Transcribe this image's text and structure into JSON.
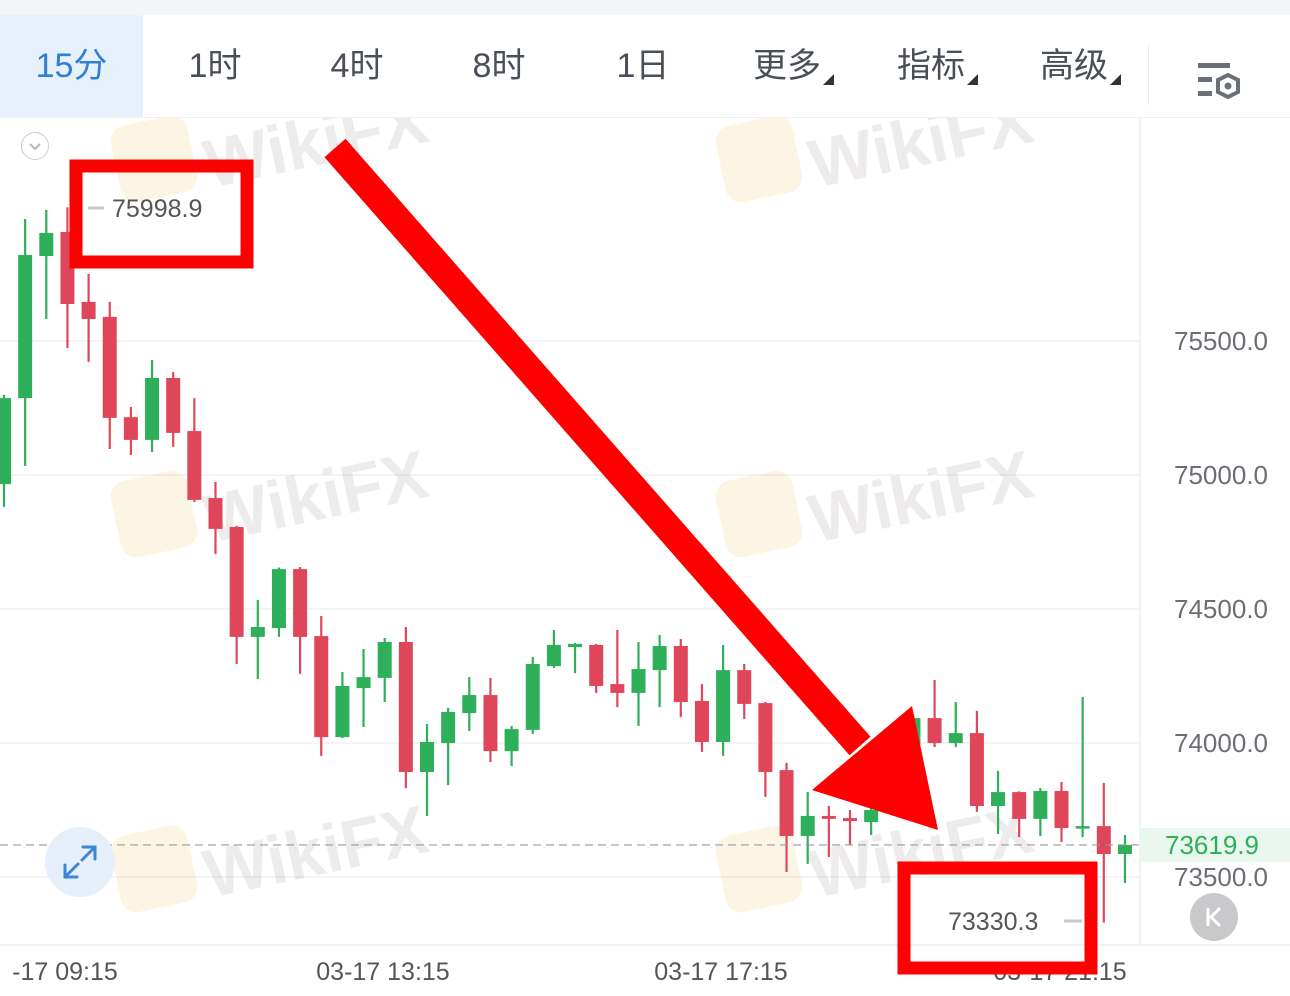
{
  "toolbar": {
    "tabs": [
      {
        "label": "15分",
        "active": true
      },
      {
        "label": "1时"
      },
      {
        "label": "4时"
      },
      {
        "label": "8时"
      },
      {
        "label": "1日"
      },
      {
        "label": "更多",
        "dropdown": true
      },
      {
        "label": "指标",
        "dropdown": true
      },
      {
        "label": "高级",
        "dropdown": true
      }
    ],
    "settings_icon": "chart-settings-icon"
  },
  "colors": {
    "up": "#2eaf5a",
    "down": "#e0465a",
    "accent": "#2f7fd3",
    "annotation": "#ff0000",
    "current_price_bg": "#eaf7ee"
  },
  "watermark": "WikiFX",
  "annotations": {
    "high_label": "75998.9",
    "low_label": "73330.3"
  },
  "chart_data": {
    "type": "candlestick",
    "title": "",
    "interval": "15分",
    "y_ticks": [
      "75500.0",
      "75000.0",
      "74500.0",
      "74000.0",
      "73500.0"
    ],
    "y_tick_values": [
      75500,
      75000,
      74500,
      74000,
      73500
    ],
    "x_ticks": [
      "-17 09:15",
      "03-17 13:15",
      "03-17 17:15",
      "03-17 21:15"
    ],
    "current_price": "73619.9",
    "grid": true,
    "candles_ohlc": [
      [
        74966,
        75299,
        74881,
        75287
      ],
      [
        75287,
        75955,
        75034,
        75821
      ],
      [
        75817,
        75989,
        75582,
        75903
      ],
      [
        75907,
        75998.9,
        75474,
        75638
      ],
      [
        75646,
        75750,
        75422,
        75582
      ],
      [
        75590,
        75646,
        75097,
        75213
      ],
      [
        75216,
        75254,
        75075,
        75131
      ],
      [
        75131,
        75429,
        75086,
        75362
      ],
      [
        75362,
        75384,
        75105,
        75157
      ],
      [
        75164,
        75287,
        74899,
        74907
      ],
      [
        74914,
        74974,
        74705,
        74799
      ],
      [
        74806,
        74810,
        74295,
        74396
      ],
      [
        74396,
        74534,
        74239,
        74433
      ],
      [
        74429,
        74655,
        74396,
        74649
      ],
      [
        74649,
        74657,
        74258,
        74396
      ],
      [
        74399,
        74474,
        73952,
        74022
      ],
      [
        74022,
        74265,
        74019,
        74213
      ],
      [
        74205,
        74351,
        74060,
        74246
      ],
      [
        74243,
        74392,
        74153,
        74377
      ],
      [
        74377,
        74433,
        73832,
        73892
      ],
      [
        73892,
        74071,
        73728,
        74004
      ],
      [
        74000,
        74131,
        73843,
        74116
      ],
      [
        74112,
        74246,
        74045,
        74179
      ],
      [
        74179,
        74243,
        73929,
        73970
      ],
      [
        73970,
        74064,
        73914,
        74052
      ],
      [
        74049,
        74321,
        74034,
        74295
      ],
      [
        74287,
        74422,
        74280,
        74366
      ],
      [
        74358,
        74373,
        74261,
        74370
      ],
      [
        74366,
        74370,
        74187,
        74213
      ],
      [
        74220,
        74422,
        74134,
        74187
      ],
      [
        74187,
        74377,
        74064,
        74276
      ],
      [
        74272,
        74403,
        74134,
        74362
      ],
      [
        74362,
        74388,
        74097,
        74153
      ],
      [
        74157,
        74220,
        73967,
        74004
      ],
      [
        74004,
        74366,
        73952,
        74272
      ],
      [
        74272,
        74295,
        74090,
        74146
      ],
      [
        74149,
        74153,
        73799,
        73892
      ],
      [
        73899,
        73926,
        73519,
        73653
      ],
      [
        73653,
        73817,
        73549,
        73728
      ],
      [
        73728,
        73765,
        73575,
        73717
      ],
      [
        73720,
        73750,
        73620,
        73709
      ],
      [
        73705,
        73761,
        73657,
        73750
      ],
      [
        73750,
        73993,
        73732,
        73974
      ],
      [
        73978,
        74101,
        73967,
        74093
      ],
      [
        74093,
        74235,
        73985,
        74000
      ],
      [
        74000,
        74153,
        73985,
        74037
      ],
      [
        74037,
        74120,
        73743,
        73765
      ],
      [
        73765,
        73896,
        73661,
        73817
      ],
      [
        73817,
        73820,
        73649,
        73717
      ],
      [
        73717,
        73832,
        73653,
        73821
      ],
      [
        73821,
        73855,
        73631,
        73683
      ],
      [
        73683,
        74172,
        73649,
        73690
      ],
      [
        73690,
        73851,
        73330.3,
        73586
      ],
      [
        73586,
        73657,
        73478,
        73619.9
      ]
    ]
  }
}
